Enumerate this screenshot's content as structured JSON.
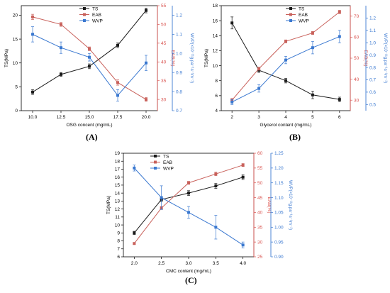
{
  "colors": {
    "TS": "#1a1a1a",
    "EAB": "#c8605a",
    "WVP": "#3a78d0",
    "axisLeft": "#000000",
    "axisEAB": "#d9534f",
    "axisWVP": "#3a78d0"
  },
  "panel_labels": [
    "(A)",
    "(B)",
    "(C)"
  ],
  "chart_data": [
    {
      "type": "line",
      "xlabel": "OSG concent (mg/mL)",
      "ylabel": "TS(MPa)",
      "y2label": "EAB(%)",
      "y3label": "WVP(×10⁻¹¹g.pa⁻¹s⁻¹m⁻¹)",
      "x": [
        10.0,
        12.5,
        15.0,
        17.5,
        20.0
      ],
      "x_tick_labels": [
        "10.0",
        "12.5",
        "15.0",
        "17.5",
        "20.0"
      ],
      "xlim": [
        9,
        21
      ],
      "ylim": [
        0,
        22
      ],
      "y_ticks": [
        0,
        5,
        10,
        15,
        20
      ],
      "y2lim": [
        27,
        55
      ],
      "y2_ticks": [
        30,
        35,
        40,
        45,
        50,
        55
      ],
      "y3lim": [
        0.7,
        1.25
      ],
      "y3_ticks": [
        0.7,
        0.8,
        0.9,
        1.0,
        1.1,
        1.2
      ],
      "y3_tick_labels": [
        "0.7",
        "0.8",
        "0.9",
        "1.0",
        "1.1",
        "1.2"
      ],
      "legend_position": "top-center",
      "series": [
        {
          "name": "TS",
          "axis": "y",
          "marker": "square",
          "values": [
            3.9,
            7.6,
            9.3,
            13.7,
            21.0
          ],
          "errors": [
            0.5,
            0.4,
            0.5,
            0.5,
            0.5
          ]
        },
        {
          "name": "EAB",
          "axis": "y2",
          "marker": "square",
          "values": [
            52.0,
            50.0,
            43.5,
            34.5,
            30.0
          ],
          "errors": [
            0.7,
            0.5,
            0.5,
            0.7,
            0.5
          ]
        },
        {
          "name": "WVP",
          "axis": "y3",
          "marker": "square",
          "values": [
            1.1,
            1.03,
            0.98,
            0.78,
            0.95
          ],
          "errors": [
            0.04,
            0.03,
            0.02,
            0.03,
            0.04
          ]
        }
      ]
    },
    {
      "type": "line",
      "xlabel": "Glycerol content (mg/mL)",
      "ylabel": "TS(MPa)",
      "y2label": "EAB(%)",
      "y3label": "WVP(×10⁻¹¹g.pa⁻¹s⁻¹m⁻¹)",
      "x": [
        2,
        3,
        4,
        5,
        6
      ],
      "x_tick_labels": [
        "2",
        "3",
        "4",
        "5",
        "6"
      ],
      "xlim": [
        1.6,
        6.4
      ],
      "ylim": [
        4,
        18
      ],
      "y_ticks": [
        4,
        6,
        8,
        10,
        12,
        14,
        16,
        18
      ],
      "y2lim": [
        25,
        75
      ],
      "y2_ticks": [
        30,
        40,
        50,
        60,
        70
      ],
      "y3lim": [
        0.45,
        1.3
      ],
      "y3_ticks": [
        0.5,
        0.6,
        0.7,
        0.8,
        0.9,
        1.0,
        1.1,
        1.2
      ],
      "y3_tick_labels": [
        "0.5",
        "0.6",
        "0.7",
        "0.8",
        "0.9",
        "1.0",
        "1.1",
        "1.2"
      ],
      "legend_position": "top-center",
      "series": [
        {
          "name": "TS",
          "axis": "y",
          "marker": "square",
          "values": [
            15.7,
            9.4,
            8.0,
            6.1,
            5.5
          ],
          "errors": [
            0.8,
            0.3,
            0.3,
            0.5,
            0.3
          ]
        },
        {
          "name": "EAB",
          "axis": "y2",
          "marker": "square",
          "values": [
            30.0,
            45.0,
            58.0,
            62.0,
            72.0
          ],
          "errors": [
            0.8,
            0.7,
            0.7,
            0.7,
            0.8
          ]
        },
        {
          "name": "WVP",
          "axis": "y3",
          "marker": "square",
          "values": [
            0.52,
            0.63,
            0.86,
            0.96,
            1.05
          ],
          "errors": [
            0.02,
            0.03,
            0.03,
            0.05,
            0.05
          ]
        }
      ]
    },
    {
      "type": "line",
      "xlabel": "CMC content (mg/mL)",
      "ylabel": "TS(MPa)",
      "y2label": "EAB(%)",
      "y3label": "WVP(×10⁻¹¹g.pa⁻¹s⁻¹m⁻¹)",
      "x": [
        2.0,
        2.5,
        3.0,
        3.5,
        4.0
      ],
      "x_tick_labels": [
        "2.0",
        "2.5",
        "3.0",
        "3.5",
        "4.0"
      ],
      "xlim": [
        1.8,
        4.2
      ],
      "ylim": [
        6,
        19
      ],
      "y_ticks": [
        6,
        7,
        8,
        9,
        10,
        11,
        12,
        13,
        14,
        15,
        16,
        17,
        18,
        19
      ],
      "y2lim": [
        25,
        60
      ],
      "y2_ticks": [
        25,
        30,
        35,
        40,
        45,
        50,
        55,
        60
      ],
      "y3lim": [
        0.9,
        1.25
      ],
      "y3_ticks": [
        0.9,
        0.95,
        1.0,
        1.05,
        1.1,
        1.15,
        1.2,
        1.25
      ],
      "y3_tick_labels": [
        "0.90",
        "0.95",
        "1.00",
        "1.05",
        "1.10",
        "1.15",
        "1.20",
        "1.25"
      ],
      "legend_position": "top-center",
      "series": [
        {
          "name": "TS",
          "axis": "y",
          "marker": "square",
          "values": [
            9.0,
            13.2,
            14.0,
            14.9,
            16.0
          ],
          "errors": [
            0.2,
            0.3,
            0.3,
            0.3,
            0.3
          ]
        },
        {
          "name": "EAB",
          "axis": "y2",
          "marker": "square",
          "values": [
            29.5,
            41.5,
            50.0,
            53.0,
            56.0
          ],
          "errors": [
            0.3,
            0.5,
            0.5,
            0.6,
            0.5
          ]
        },
        {
          "name": "WVP",
          "axis": "y3",
          "marker": "square",
          "values": [
            1.2,
            1.1,
            1.05,
            1.0,
            0.94
          ],
          "errors": [
            0.01,
            0.04,
            0.02,
            0.04,
            0.01
          ]
        }
      ]
    }
  ]
}
